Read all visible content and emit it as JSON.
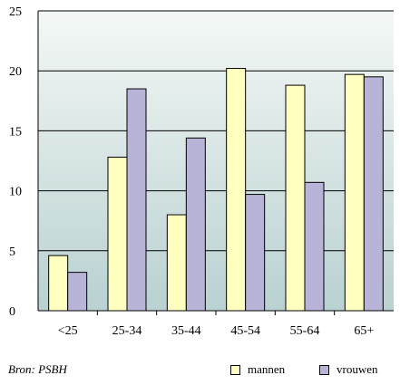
{
  "chart_data": {
    "type": "bar",
    "categories": [
      "<25",
      "25-34",
      "35-44",
      "45-54",
      "55-64",
      "65+"
    ],
    "series": [
      {
        "name": "mannen",
        "values": [
          4.6,
          12.8,
          8.0,
          20.2,
          18.8,
          19.7
        ],
        "color": "#ffffc0"
      },
      {
        "name": "vrouwen",
        "values": [
          3.2,
          18.5,
          14.4,
          9.7,
          10.7,
          19.5
        ],
        "color": "#b8b4d8"
      }
    ],
    "ylim": [
      0,
      25
    ],
    "yticks": [
      0,
      5,
      10,
      15,
      20,
      25
    ],
    "grid": true,
    "legend_position": "bottom-right",
    "background_gradient": [
      "#f4f8f6",
      "#b9d1d1"
    ]
  },
  "source_label": "Bron: PSBH",
  "legend": [
    {
      "label": "mannen"
    },
    {
      "label": "vrouwen"
    }
  ]
}
